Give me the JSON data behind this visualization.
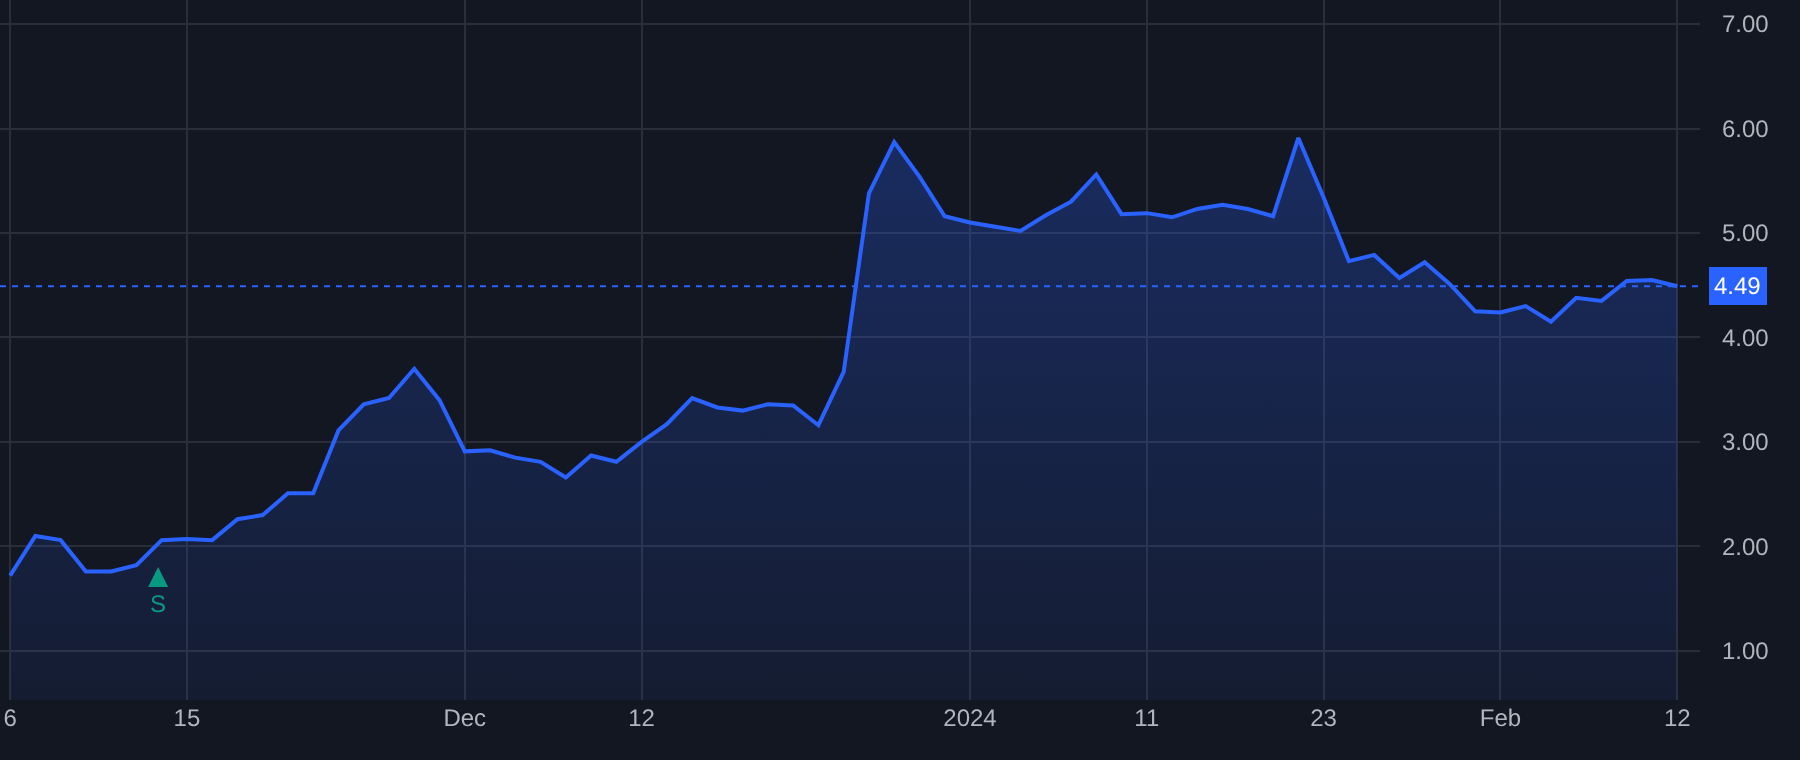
{
  "chart_data": {
    "type": "area",
    "categories": [
      "6",
      null,
      null,
      null,
      null,
      null,
      null,
      "15",
      null,
      null,
      null,
      null,
      null,
      null,
      null,
      null,
      null,
      null,
      "Dec",
      null,
      null,
      null,
      null,
      null,
      null,
      "12",
      null,
      null,
      null,
      null,
      null,
      null,
      null,
      null,
      null,
      null,
      null,
      null,
      "2024",
      null,
      null,
      null,
      null,
      null,
      null,
      "11",
      null,
      null,
      null,
      null,
      null,
      null,
      "23",
      null,
      null,
      null,
      null,
      null,
      null,
      "Feb",
      null,
      null,
      null,
      null,
      null,
      null,
      "12"
    ],
    "series": [
      {
        "color": "#2962ff",
        "values": [
          1.72,
          2.1,
          2.06,
          1.76,
          1.76,
          1.82,
          2.06,
          2.07,
          2.06,
          2.26,
          2.3,
          2.51,
          2.51,
          3.11,
          3.36,
          3.42,
          3.7,
          3.4,
          2.91,
          2.92,
          2.85,
          2.81,
          2.66,
          2.87,
          2.81,
          3.0,
          3.17,
          3.42,
          3.33,
          3.3,
          3.36,
          3.35,
          3.16,
          3.67,
          5.38,
          5.87,
          5.54,
          5.16,
          5.1,
          5.06,
          5.02,
          5.17,
          5.3,
          5.56,
          5.18,
          5.19,
          5.15,
          5.23,
          5.27,
          5.23,
          5.16,
          5.91,
          5.34,
          4.73,
          4.79,
          4.57,
          4.72,
          4.51,
          4.25,
          4.24,
          4.3,
          4.15,
          4.38,
          4.35,
          4.54,
          4.55,
          4.49
        ]
      }
    ],
    "ylim": [
      0.53,
      7.23
    ],
    "yticks": [
      {
        "value": 1,
        "label": "1.00"
      },
      {
        "value": 2,
        "label": "2.00"
      },
      {
        "value": 3,
        "label": "3.00"
      },
      {
        "value": 4,
        "label": "4.00"
      },
      {
        "value": 5,
        "label": "5.00"
      },
      {
        "value": 6,
        "label": "6.00"
      },
      {
        "value": 7,
        "label": "7.00"
      }
    ],
    "ref_lines": [
      {
        "axis": "y",
        "value": 4.49,
        "label": "4.49",
        "color": "#2962ff",
        "line_style": "dotted"
      }
    ],
    "annotations": [
      "S"
    ],
    "grid": true,
    "marker": "none",
    "line_style": "solid"
  }
}
